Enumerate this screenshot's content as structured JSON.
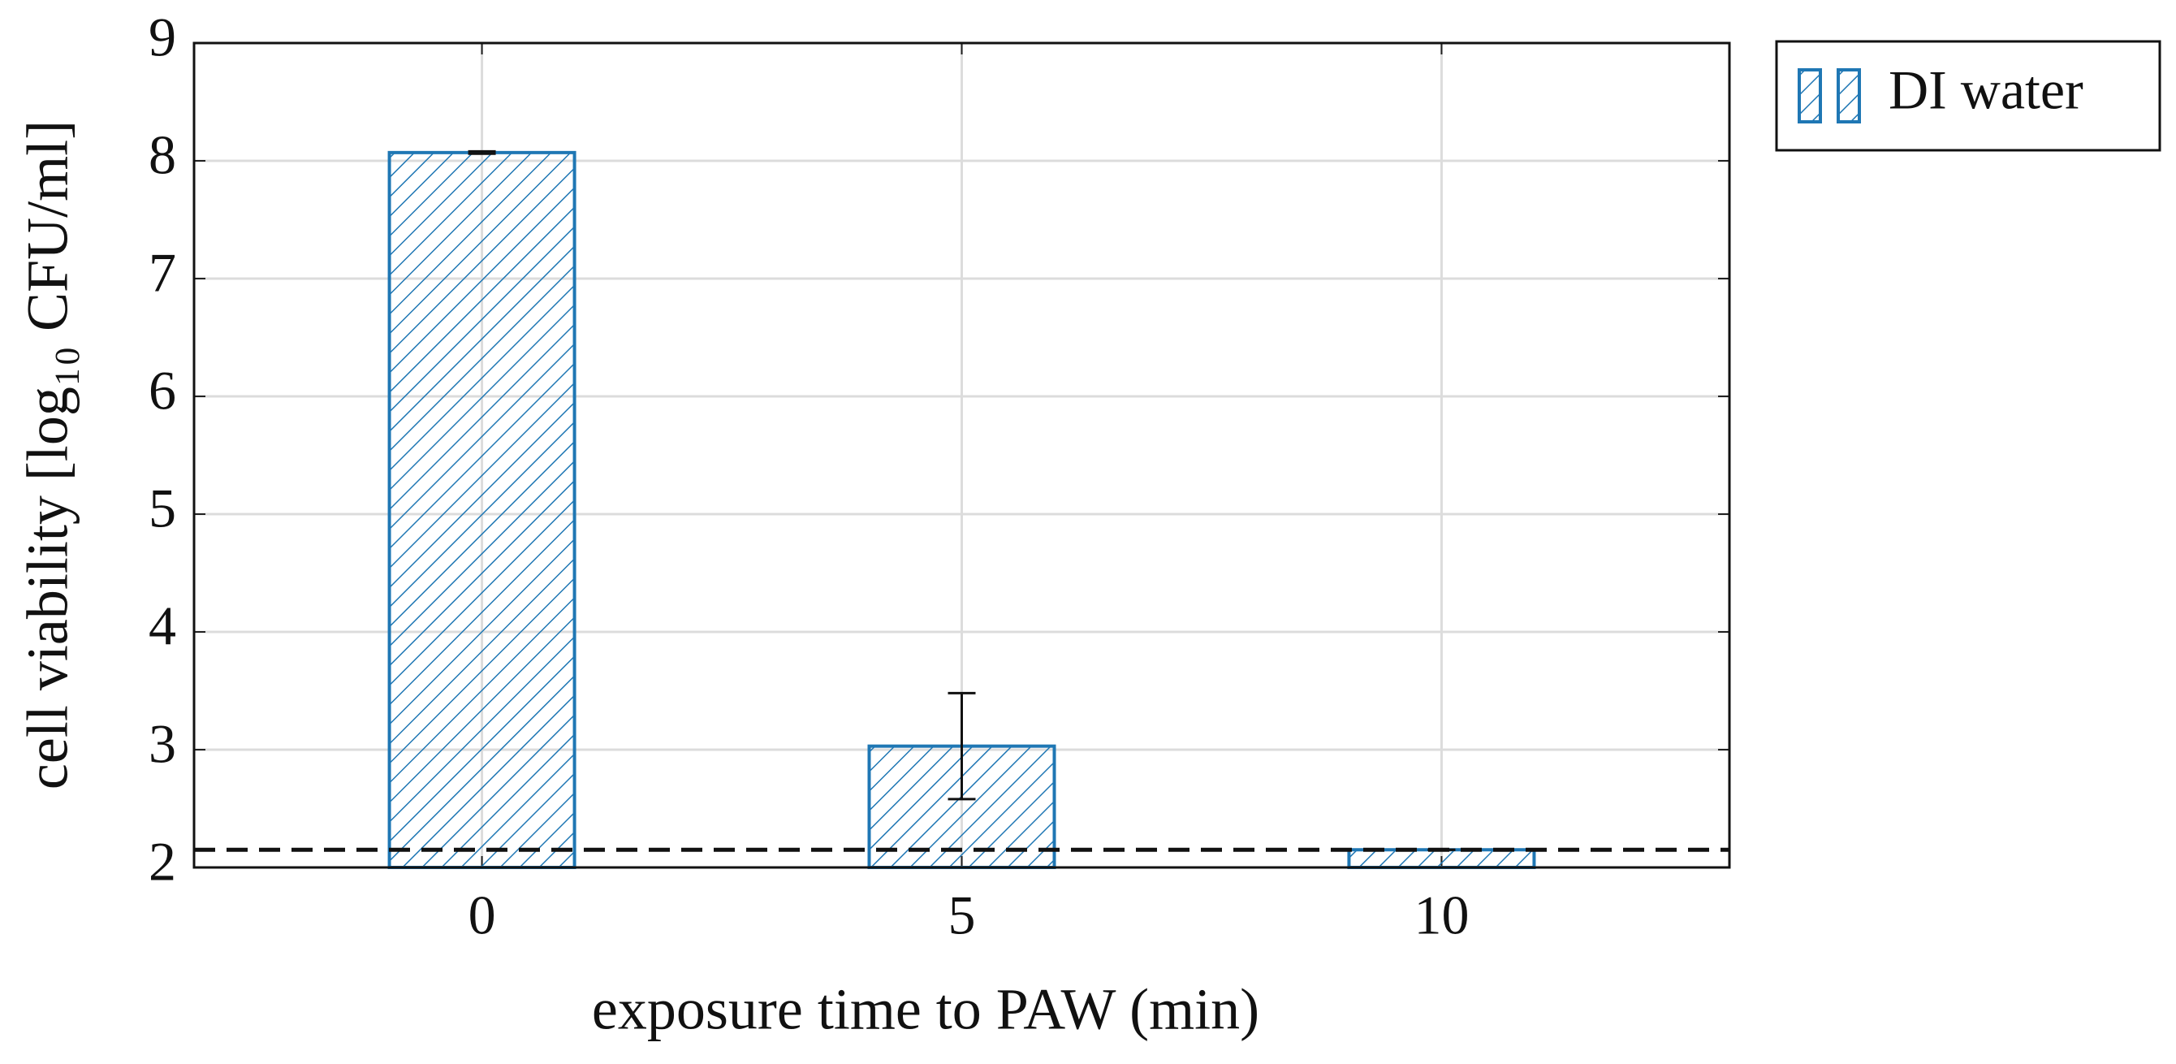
{
  "chart_data": {
    "type": "bar",
    "xlabel": "exposure time to PAW (min)",
    "ylabel": "cell viability [log₁₀ CFU/ml]",
    "x": [
      0,
      5,
      10
    ],
    "series": [
      {
        "name": "DI water",
        "color": "#1f77b4",
        "values": [
          8.07,
          3.03,
          2.15
        ],
        "errors": [
          0.01,
          0.45,
          0
        ]
      }
    ],
    "reference_line": 2.15,
    "xlim": [
      -3,
      13
    ],
    "xticks": [
      0,
      5,
      10
    ],
    "ylim": [
      2,
      9
    ],
    "yticks": [
      2,
      3,
      4,
      5,
      6,
      7,
      8,
      9
    ],
    "grid": true,
    "legend": "outside-right",
    "hatch": true
  }
}
